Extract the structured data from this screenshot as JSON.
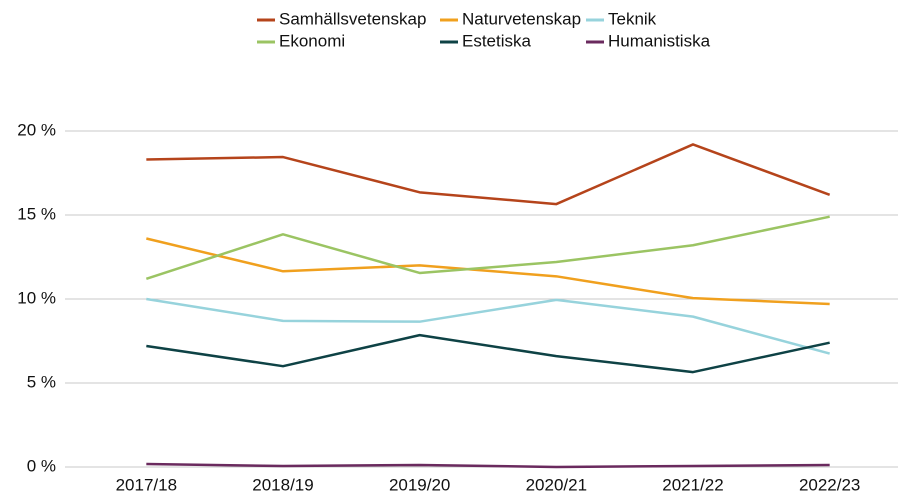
{
  "chart_data": {
    "type": "line",
    "categories": [
      "2017/18",
      "2018/19",
      "2019/20",
      "2020/21",
      "2021/22",
      "2022/23"
    ],
    "series": [
      {
        "name": "Samhällsvetenskap",
        "color": "#b5441b",
        "values": [
          18.3,
          18.45,
          16.35,
          15.65,
          19.2,
          16.2
        ]
      },
      {
        "name": "Naturvetenskap",
        "color": "#f0a01e",
        "values": [
          13.6,
          11.65,
          12.0,
          11.35,
          10.05,
          9.7
        ]
      },
      {
        "name": "Teknik",
        "color": "#97d3dc",
        "values": [
          10.0,
          8.7,
          8.65,
          9.95,
          8.95,
          6.75
        ]
      },
      {
        "name": "Ekonomi",
        "color": "#9bc463",
        "values": [
          11.2,
          13.85,
          11.55,
          12.2,
          13.2,
          14.9
        ]
      },
      {
        "name": "Estetiska",
        "color": "#0e4245",
        "values": [
          7.2,
          6.0,
          7.85,
          6.6,
          5.65,
          7.4
        ]
      },
      {
        "name": "Humanistiska",
        "color": "#6a2a5e",
        "values": [
          0.18,
          0.06,
          0.12,
          0.0,
          0.06,
          0.12
        ]
      }
    ],
    "ylim": [
      0,
      20
    ],
    "yticks": [
      {
        "value": 0,
        "label": "0 %"
      },
      {
        "value": 5,
        "label": "5 %"
      },
      {
        "value": 10,
        "label": "10 %"
      },
      {
        "value": 15,
        "label": "15 %"
      },
      {
        "value": 20,
        "label": "20 %"
      }
    ],
    "grid": true,
    "legend": "top"
  }
}
